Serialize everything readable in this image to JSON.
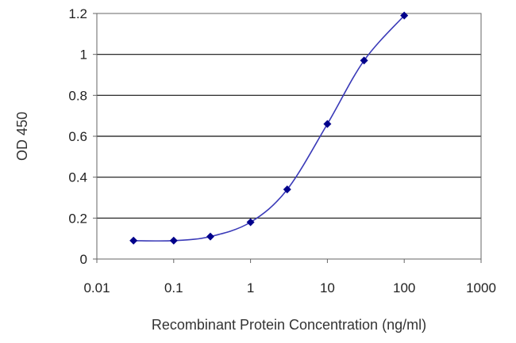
{
  "chart_data": {
    "type": "line",
    "x_scale": "log",
    "xlabel": "Recombinant Protein Concentration (ng/ml)",
    "ylabel": "OD 450",
    "xlim": [
      0.01,
      1000
    ],
    "ylim": [
      0,
      1.2
    ],
    "x_tick_labels": [
      "0.01",
      "0.1",
      "1",
      "10",
      "100",
      "1000"
    ],
    "y_tick_labels": [
      "0",
      "0.2",
      "0.4",
      "0.6",
      "0.8",
      "1",
      "1.2"
    ],
    "grid": "horizontal",
    "legend": "none",
    "series": [
      {
        "x": [
          0.03,
          0.1,
          0.3,
          1,
          3,
          10,
          30,
          100
        ],
        "y": [
          0.09,
          0.09,
          0.11,
          0.18,
          0.34,
          0.66,
          0.97,
          1.19
        ]
      }
    ],
    "colors": {
      "line": "#3a3ab8",
      "marker": "#00008b",
      "grid": "#111111",
      "axis": "#666666"
    }
  }
}
